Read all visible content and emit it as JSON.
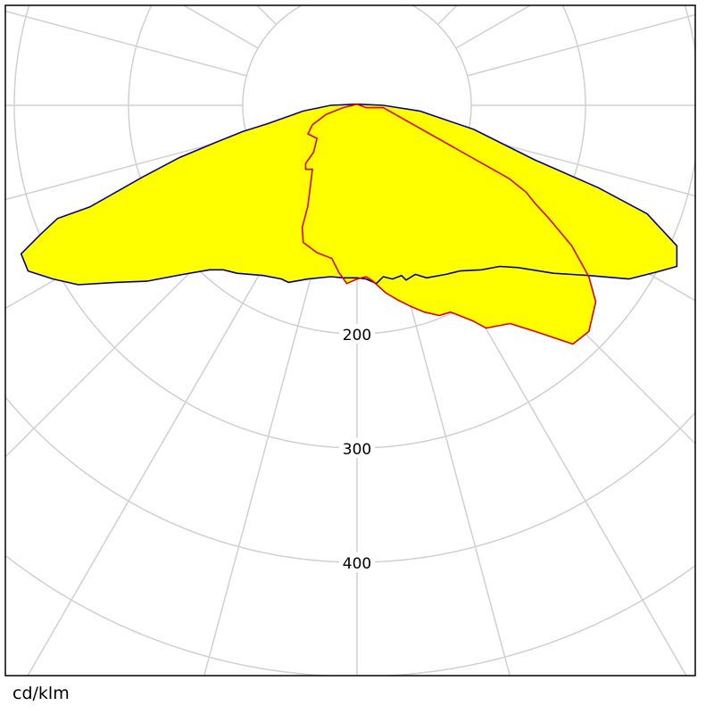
{
  "chart_data": {
    "type": "polar",
    "unit_label": "cd/klm",
    "radial_ticks": [
      100,
      200,
      300,
      400,
      500,
      600
    ],
    "radial_tick_labels": [
      "200",
      "300",
      "400"
    ],
    "angle_grid_step_deg": 15,
    "grid": true,
    "colors": {
      "fill": "#ffff00",
      "series_a": "#0000a0",
      "series_b": "#e00000",
      "grid": "#d0d0d0",
      "frame": "#000000"
    },
    "series": [
      {
        "points": [
          [
            0,
            -1
          ],
          [
            -23,
            0
          ],
          [
            -47,
            5
          ],
          [
            -78,
            16
          ],
          [
            -100,
            23
          ],
          [
            -125,
            33
          ],
          [
            -156,
            46
          ],
          [
            -188,
            63
          ],
          [
            -211,
            76
          ],
          [
            -234,
            89
          ],
          [
            -262,
            99
          ],
          [
            -277,
            113
          ],
          [
            -294,
            130
          ],
          [
            -288,
            145
          ],
          [
            -266,
            152
          ],
          [
            -244,
            157
          ],
          [
            -211,
            155
          ],
          [
            -184,
            154
          ],
          [
            -152,
            148
          ],
          [
            -129,
            144
          ],
          [
            -117,
            144
          ],
          [
            -105,
            147
          ],
          [
            -82,
            149
          ],
          [
            -66,
            152
          ],
          [
            -60,
            155
          ],
          [
            -43,
            152
          ],
          [
            -23,
            150
          ],
          [
            -12,
            151
          ],
          [
            0,
            151
          ],
          [
            8,
            152
          ],
          [
            17,
            156
          ],
          [
            23,
            150
          ],
          [
            31,
            152
          ],
          [
            39,
            149
          ],
          [
            43,
            153
          ],
          [
            51,
            148
          ],
          [
            61,
            151
          ],
          [
            78,
            148
          ],
          [
            90,
            145
          ],
          [
            109,
            144
          ],
          [
            125,
            141
          ],
          [
            141,
            142
          ],
          [
            172,
            147
          ],
          [
            203,
            149
          ],
          [
            238,
            152
          ],
          [
            262,
            146
          ],
          [
            280,
            141
          ],
          [
            280,
            123
          ],
          [
            254,
            95
          ],
          [
            211,
            72
          ],
          [
            156,
            48
          ],
          [
            102,
            21
          ],
          [
            55,
            5
          ],
          [
            23,
            0
          ]
        ]
      },
      {
        "points": [
          [
            8,
            2
          ],
          [
            0,
            -1
          ],
          [
            -12,
            2
          ],
          [
            -27,
            8
          ],
          [
            -39,
            17
          ],
          [
            -43,
            25
          ],
          [
            -35,
            29
          ],
          [
            -38,
            41
          ],
          [
            -45,
            51
          ],
          [
            -45,
            56
          ],
          [
            -39,
            56
          ],
          [
            -43,
            88
          ],
          [
            -48,
            107
          ],
          [
            -47,
            120
          ],
          [
            -35,
            129
          ],
          [
            -22,
            134
          ],
          [
            -16,
            146
          ],
          [
            -9,
            156
          ],
          [
            0,
            152
          ],
          [
            8,
            150
          ],
          [
            14,
            154
          ],
          [
            25,
            164
          ],
          [
            35,
            170
          ],
          [
            47,
            176
          ],
          [
            59,
            181
          ],
          [
            72,
            184
          ],
          [
            82,
            181
          ],
          [
            102,
            189
          ],
          [
            113,
            195
          ],
          [
            134,
            191
          ],
          [
            156,
            198
          ],
          [
            189,
            209
          ],
          [
            203,
            198
          ],
          [
            209,
            172
          ],
          [
            203,
            150
          ],
          [
            188,
            123
          ],
          [
            168,
            99
          ],
          [
            156,
            86
          ],
          [
            148,
            76
          ],
          [
            133,
            64
          ],
          [
            23,
            2
          ]
        ]
      }
    ]
  }
}
